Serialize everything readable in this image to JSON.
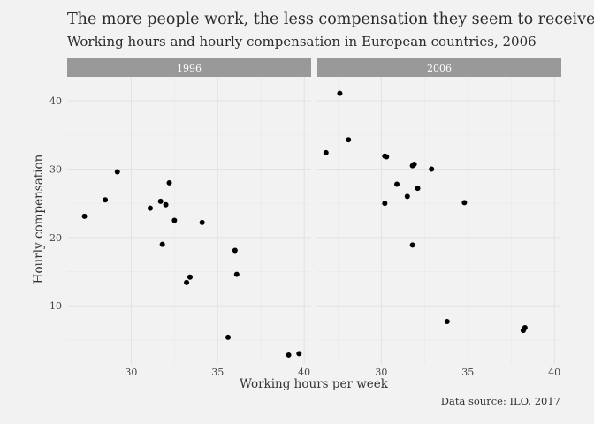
{
  "chart_data": {
    "type": "scatter",
    "title": "The more people work, the less compensation they seem to receive",
    "subtitle": "Working hours and hourly compensation in European countries, 2006",
    "caption": "Data source: ILO, 2017",
    "xlabel": "Working hours per week",
    "ylabel": "Hourly compensation",
    "ylim": [
      1.5,
      43.5
    ],
    "yticks": [
      10,
      20,
      30,
      40
    ],
    "grid": true,
    "facets": [
      {
        "label": "1996",
        "xlim": [
          26.3,
          40.4
        ],
        "xticks": [
          30,
          35,
          40
        ],
        "points": [
          {
            "x": 27.3,
            "y": 23.1
          },
          {
            "x": 28.5,
            "y": 25.5
          },
          {
            "x": 29.2,
            "y": 29.6
          },
          {
            "x": 31.1,
            "y": 24.3
          },
          {
            "x": 31.7,
            "y": 25.3
          },
          {
            "x": 32.0,
            "y": 24.8
          },
          {
            "x": 32.2,
            "y": 28.0
          },
          {
            "x": 32.5,
            "y": 22.5
          },
          {
            "x": 31.8,
            "y": 19.0
          },
          {
            "x": 34.1,
            "y": 22.2
          },
          {
            "x": 33.2,
            "y": 13.4
          },
          {
            "x": 33.4,
            "y": 14.2
          },
          {
            "x": 36.0,
            "y": 18.1
          },
          {
            "x": 36.1,
            "y": 14.6
          },
          {
            "x": 35.6,
            "y": 5.4
          },
          {
            "x": 39.1,
            "y": 2.8
          },
          {
            "x": 39.7,
            "y": 3.0
          }
        ]
      },
      {
        "label": "2006",
        "xlim": [
          26.3,
          40.4
        ],
        "xticks": [
          30,
          35,
          40
        ],
        "points": [
          {
            "x": 27.6,
            "y": 41.1
          },
          {
            "x": 28.1,
            "y": 34.3
          },
          {
            "x": 26.8,
            "y": 32.4
          },
          {
            "x": 30.2,
            "y": 31.9
          },
          {
            "x": 30.3,
            "y": 31.8
          },
          {
            "x": 31.8,
            "y": 30.5
          },
          {
            "x": 31.9,
            "y": 30.7
          },
          {
            "x": 32.9,
            "y": 30.0
          },
          {
            "x": 30.9,
            "y": 27.8
          },
          {
            "x": 32.1,
            "y": 27.2
          },
          {
            "x": 31.5,
            "y": 26.0
          },
          {
            "x": 30.2,
            "y": 25.0
          },
          {
            "x": 34.8,
            "y": 25.1
          },
          {
            "x": 31.8,
            "y": 18.9
          },
          {
            "x": 33.8,
            "y": 7.7
          },
          {
            "x": 38.2,
            "y": 6.4
          },
          {
            "x": 38.3,
            "y": 6.8
          }
        ]
      }
    ]
  }
}
